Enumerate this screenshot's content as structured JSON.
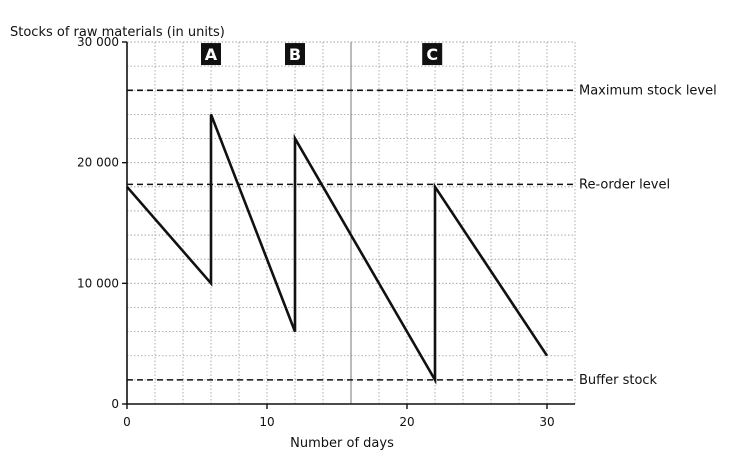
{
  "chart_data": {
    "type": "line",
    "title": "",
    "ylabel": "Stocks of raw materials (in units)",
    "xlabel": "Number of days",
    "xlim": [
      0,
      32
    ],
    "ylim": [
      0,
      30000
    ],
    "x_ticks": [
      0,
      10,
      20,
      30
    ],
    "x_tick_labels": [
      "0",
      "10",
      "20",
      "30"
    ],
    "y_ticks": [
      0,
      10000,
      20000,
      30000
    ],
    "y_tick_labels": [
      "0",
      "10 000",
      "20 000",
      "30 000"
    ],
    "grid": true,
    "series": [
      {
        "points": [
          [
            0,
            18000
          ],
          [
            6,
            10000
          ],
          [
            6,
            24000
          ],
          [
            12,
            6000
          ],
          [
            12,
            22000
          ],
          [
            22,
            2000
          ],
          [
            22,
            18000
          ],
          [
            30,
            4000
          ]
        ]
      }
    ],
    "reference_lines": [
      {
        "label": "Maximum stock level",
        "y": 26000
      },
      {
        "label": "Re-order level",
        "y": 18200
      },
      {
        "label": "Buffer stock",
        "y": 2000
      }
    ],
    "period_labels": [
      {
        "label": "A",
        "x": 6,
        "y": 29000
      },
      {
        "label": "B",
        "x": 12,
        "y": 29000
      },
      {
        "label": "C",
        "x": 21.8,
        "y": 29000
      }
    ],
    "vertical_marker_x": 16
  }
}
